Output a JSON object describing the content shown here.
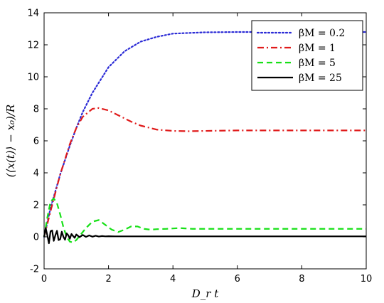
{
  "chart_data": {
    "type": "line",
    "title": "",
    "xlabel": "D_r t",
    "ylabel": "(⟨x(t)⟩ − x₀)/R",
    "xlim": [
      0,
      10
    ],
    "ylim": [
      -2,
      14
    ],
    "xticks": [
      0,
      2,
      4,
      6,
      8,
      10
    ],
    "yticks": [
      -2,
      0,
      2,
      4,
      6,
      8,
      10,
      12,
      14
    ],
    "legend_position": "top-right",
    "grid": false,
    "series": [
      {
        "name": "βM = 0.2",
        "color": "#2b2bd6",
        "style": "dotted",
        "x": [
          0,
          0.2,
          0.5,
          0.8,
          1.0,
          1.2,
          1.5,
          2.0,
          2.5,
          3.0,
          3.5,
          4.0,
          5.0,
          6.0,
          7.0,
          8.0,
          9.0,
          10.0
        ],
        "y": [
          0,
          1.8,
          3.9,
          5.7,
          6.8,
          7.8,
          9.0,
          10.6,
          11.6,
          12.2,
          12.5,
          12.7,
          12.78,
          12.8,
          12.8,
          12.8,
          12.8,
          12.8
        ]
      },
      {
        "name": "βM = 1",
        "color": "#e01b1b",
        "style": "dashdot",
        "x": [
          0,
          0.2,
          0.5,
          0.8,
          1.0,
          1.2,
          1.5,
          1.7,
          2.0,
          2.3,
          2.7,
          3.0,
          3.5,
          4.0,
          4.5,
          5.0,
          6.0,
          7.0,
          8.0,
          10.0
        ],
        "y": [
          0,
          1.6,
          3.9,
          5.8,
          6.8,
          7.5,
          8.0,
          8.05,
          7.9,
          7.6,
          7.2,
          6.95,
          6.7,
          6.62,
          6.6,
          6.62,
          6.65,
          6.65,
          6.65,
          6.65
        ]
      },
      {
        "name": "βM = 5",
        "color": "#17e017",
        "style": "dashed",
        "x": [
          0,
          0.1,
          0.2,
          0.3,
          0.4,
          0.5,
          0.6,
          0.7,
          0.8,
          0.9,
          1.0,
          1.1,
          1.2,
          1.3,
          1.5,
          1.7,
          1.9,
          2.1,
          2.3,
          2.5,
          2.7,
          2.9,
          3.1,
          3.3,
          3.5,
          3.8,
          4.2,
          4.6,
          5.0,
          6.0,
          8.0,
          10.0
        ],
        "y": [
          0,
          1.2,
          2.2,
          2.4,
          2.1,
          1.4,
          0.6,
          0.0,
          -0.3,
          -0.35,
          -0.2,
          0.05,
          0.3,
          0.55,
          0.95,
          1.05,
          0.75,
          0.45,
          0.3,
          0.45,
          0.65,
          0.65,
          0.5,
          0.45,
          0.48,
          0.5,
          0.55,
          0.5,
          0.5,
          0.5,
          0.5,
          0.5
        ]
      },
      {
        "name": "βM = 25",
        "color": "#000000",
        "style": "solid",
        "x": [
          0,
          0.05,
          0.1,
          0.15,
          0.2,
          0.25,
          0.3,
          0.35,
          0.4,
          0.45,
          0.5,
          0.55,
          0.6,
          0.65,
          0.7,
          0.75,
          0.8,
          0.85,
          0.9,
          0.95,
          1.0,
          1.1,
          1.2,
          1.3,
          1.4,
          1.5,
          1.6,
          1.7,
          1.8,
          1.9,
          2.0,
          2.2,
          2.5,
          3.0,
          4.0,
          6.0,
          8.0,
          10.0
        ],
        "y": [
          0,
          0.55,
          0.1,
          -0.4,
          0.35,
          0.4,
          -0.25,
          0.1,
          0.38,
          -0.2,
          -0.15,
          0.32,
          0.0,
          -0.18,
          0.22,
          0.1,
          -0.12,
          0.18,
          0.05,
          -0.06,
          0.15,
          -0.02,
          0.12,
          0.0,
          0.09,
          0.01,
          0.07,
          0.02,
          0.05,
          0.03,
          0.04,
          0.03,
          0.03,
          0.03,
          0.03,
          0.03,
          0.03,
          0.03
        ]
      }
    ]
  }
}
